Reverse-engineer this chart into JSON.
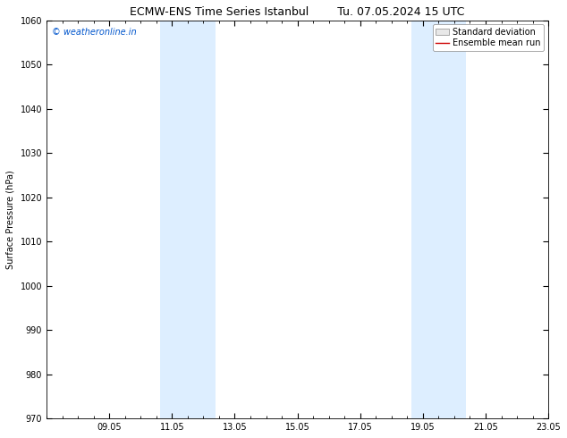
{
  "title_left": "ECMW-ENS Time Series Istanbul",
  "title_right": "Tu. 07.05.2024 15 UTC",
  "ylabel": "Surface Pressure (hPa)",
  "ylim": [
    970,
    1060
  ],
  "yticks": [
    970,
    980,
    990,
    1000,
    1010,
    1020,
    1030,
    1040,
    1050,
    1060
  ],
  "x_total": 16,
  "xtick_labels": [
    "09.05",
    "11.05",
    "13.05",
    "15.05",
    "17.05",
    "19.05",
    "21.05",
    "23.05"
  ],
  "xtick_positions_days": [
    2,
    4,
    6,
    8,
    10,
    12,
    14,
    16
  ],
  "shaded_bands": [
    {
      "x_start_day": 3.625,
      "x_end_day": 5.375
    },
    {
      "x_start_day": 11.625,
      "x_end_day": 13.375
    }
  ],
  "shade_color": "#ddeeff",
  "watermark_text": "© weatheronline.in",
  "watermark_color": "#0055cc",
  "watermark_fontsize": 7,
  "legend_std_color": "#cccccc",
  "legend_mean_color": "#cc0000",
  "background_color": "#ffffff",
  "title_fontsize": 9,
  "axis_label_fontsize": 7,
  "tick_fontsize": 7,
  "legend_fontsize": 7
}
